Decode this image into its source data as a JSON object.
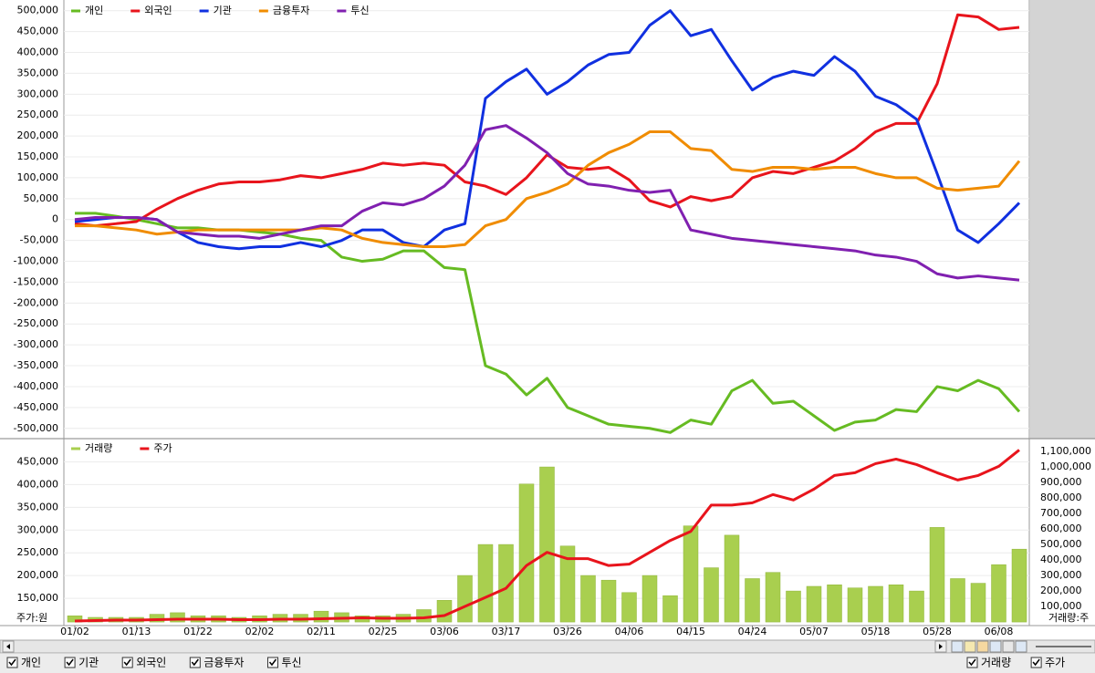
{
  "chart_data": [
    {
      "type": "line",
      "grid": true,
      "ylim": [
        -518000,
        519000
      ],
      "yticks": [
        {
          "value": 500000,
          "label": "500,000"
        },
        {
          "value": 450000,
          "label": "450,000"
        },
        {
          "value": 400000,
          "label": "400,000"
        },
        {
          "value": 350000,
          "label": "350,000"
        },
        {
          "value": 300000,
          "label": "300,000"
        },
        {
          "value": 250000,
          "label": "250,000"
        },
        {
          "value": 200000,
          "label": "200,000"
        },
        {
          "value": 150000,
          "label": "150,000"
        },
        {
          "value": 100000,
          "label": "100,000"
        },
        {
          "value": 50000,
          "label": "50,000"
        },
        0,
        {
          "value": -50000,
          "label": "-50,000"
        },
        {
          "value": -100000,
          "label": "-100,000"
        },
        {
          "value": -150000,
          "label": "-150,000"
        },
        {
          "value": -200000,
          "label": "-200,000"
        },
        {
          "value": -250000,
          "label": "-250,000"
        },
        {
          "value": -300000,
          "label": "-300,000"
        },
        {
          "value": -350000,
          "label": "-350,000"
        },
        {
          "value": -400000,
          "label": "-400,000"
        },
        {
          "value": -450000,
          "label": "-450,000"
        },
        {
          "value": -500000,
          "label": "-500,000"
        }
      ],
      "series": [
        {
          "name": "개인",
          "color": "#66bb22",
          "values": [
            15000,
            15000,
            8000,
            0,
            -10000,
            -20000,
            -20000,
            -25000,
            -25000,
            -30000,
            -35000,
            -45000,
            -50000,
            -90000,
            -100000,
            -95000,
            -75000,
            -75000,
            -115000,
            -120000,
            -350000,
            -370000,
            -420000,
            -380000,
            -450000,
            -470000,
            -490000,
            -495000,
            -500000,
            -510000,
            -480000,
            -490000,
            -410000,
            -385000,
            -440000,
            -435000,
            -470000,
            -505000,
            -485000,
            -480000,
            -455000,
            -460000,
            -400000,
            -410000,
            -385000,
            -405000,
            -460000
          ]
        },
        {
          "name": "외국인",
          "color": "#e8141c",
          "values": [
            -10000,
            -15000,
            -10000,
            -5000,
            25000,
            50000,
            70000,
            85000,
            90000,
            90000,
            95000,
            105000,
            100000,
            110000,
            120000,
            135000,
            130000,
            135000,
            130000,
            90000,
            80000,
            60000,
            100000,
            155000,
            125000,
            120000,
            125000,
            95000,
            45000,
            30000,
            55000,
            45000,
            55000,
            100000,
            115000,
            110000,
            125000,
            140000,
            170000,
            210000,
            230000,
            230000,
            325000,
            490000,
            485000,
            455000,
            460000
          ]
        },
        {
          "name": "기관",
          "color": "#1030e0",
          "values": [
            -5000,
            0,
            5000,
            5000,
            0,
            -30000,
            -55000,
            -65000,
            -70000,
            -65000,
            -65000,
            -55000,
            -65000,
            -50000,
            -25000,
            -25000,
            -55000,
            -65000,
            -25000,
            -10000,
            290000,
            330000,
            360000,
            300000,
            330000,
            370000,
            395000,
            400000,
            465000,
            500000,
            440000,
            455000,
            380000,
            310000,
            340000,
            355000,
            345000,
            390000,
            355000,
            295000,
            275000,
            240000,
            110000,
            -25000,
            -55000,
            -10000,
            40000
          ]
        },
        {
          "name": "금융투자",
          "color": "#f08c00",
          "values": [
            -15000,
            -15000,
            -20000,
            -25000,
            -35000,
            -30000,
            -25000,
            -25000,
            -25000,
            -25000,
            -25000,
            -25000,
            -20000,
            -25000,
            -45000,
            -55000,
            -60000,
            -65000,
            -65000,
            -60000,
            -15000,
            0,
            50000,
            65000,
            85000,
            130000,
            160000,
            180000,
            210000,
            210000,
            170000,
            165000,
            120000,
            115000,
            125000,
            125000,
            120000,
            125000,
            125000,
            110000,
            100000,
            100000,
            75000,
            70000,
            75000,
            80000,
            140000
          ]
        },
        {
          "name": "투신",
          "color": "#8020b0",
          "values": [
            0,
            5000,
            5000,
            5000,
            0,
            -30000,
            -35000,
            -40000,
            -40000,
            -45000,
            -35000,
            -25000,
            -15000,
            -15000,
            20000,
            40000,
            35000,
            50000,
            80000,
            130000,
            215000,
            225000,
            195000,
            160000,
            110000,
            85000,
            80000,
            70000,
            65000,
            70000,
            -25000,
            -35000,
            -45000,
            -50000,
            -55000,
            -60000,
            -65000,
            -70000,
            -75000,
            -85000,
            -90000,
            -100000,
            -130000,
            -140000,
            -135000,
            -140000,
            -145000
          ]
        }
      ]
    },
    {
      "type": "combo",
      "grid": true,
      "y_label": "주가:원",
      "y2_label": "거래량:주",
      "categories": [
        "01/02",
        null,
        null,
        "01/13",
        null,
        null,
        "01/22",
        null,
        null,
        "02/02",
        null,
        null,
        "02/11",
        null,
        null,
        "02/25",
        null,
        null,
        "03/06",
        null,
        null,
        "03/17",
        null,
        null,
        "03/26",
        null,
        null,
        "04/06",
        null,
        null,
        "04/15",
        null,
        null,
        "04/24",
        null,
        null,
        "05/07",
        null,
        null,
        "05/18",
        null,
        null,
        "05/28",
        null,
        null,
        "06/08",
        null
      ],
      "ylim": [
        90000,
        495000
      ],
      "yticks": [
        {
          "value": 450000,
          "label": "450,000"
        },
        {
          "value": 400000,
          "label": "400,000"
        },
        {
          "value": 350000,
          "label": "350,000"
        },
        {
          "value": 300000,
          "label": "300,000"
        },
        {
          "value": 250000,
          "label": "250,000"
        },
        {
          "value": 200000,
          "label": "200,000"
        },
        {
          "value": 150000,
          "label": "150,000"
        }
      ],
      "y2lim": [
        -23000,
        1165000
      ],
      "y2ticks": [
        {
          "value": 1100000,
          "label": "1,100,000"
        },
        {
          "value": 1000000,
          "label": "1,000,000"
        },
        {
          "value": 900000,
          "label": "900,000"
        },
        {
          "value": 800000,
          "label": "800,000"
        },
        {
          "value": 700000,
          "label": "700,000"
        },
        {
          "value": 600000,
          "label": "600,000"
        },
        {
          "value": 500000,
          "label": "500,000"
        },
        {
          "value": 400000,
          "label": "400,000"
        },
        {
          "value": 300000,
          "label": "300,000"
        },
        {
          "value": 200000,
          "label": "200,000"
        },
        {
          "value": 100000,
          "label": "100,000"
        }
      ],
      "series": [
        {
          "name": "거래량",
          "type": "bar",
          "axis": "y2",
          "color": "#a9cf4f",
          "values": [
            40000,
            30000,
            30000,
            30000,
            50000,
            60000,
            40000,
            40000,
            30000,
            40000,
            50000,
            50000,
            70000,
            60000,
            40000,
            40000,
            50000,
            80000,
            140000,
            300000,
            500000,
            500000,
            890000,
            1000000,
            490000,
            300000,
            270000,
            190000,
            300000,
            170000,
            620000,
            350000,
            560000,
            280000,
            320000,
            200000,
            230000,
            240000,
            220000,
            230000,
            240000,
            200000,
            610000,
            280000,
            250000,
            370000,
            470000
          ]
        },
        {
          "name": "주가",
          "type": "line",
          "color": "#e8141c",
          "values": [
            100000,
            101000,
            102000,
            102000,
            103000,
            104000,
            104000,
            104000,
            103000,
            103000,
            104000,
            104000,
            105000,
            106000,
            107000,
            106000,
            106000,
            107000,
            112000,
            132000,
            152000,
            172000,
            222000,
            251000,
            237000,
            237000,
            222000,
            225000,
            251000,
            277000,
            297000,
            355000,
            355000,
            360000,
            378000,
            366000,
            390000,
            420000,
            426000,
            446000,
            456000,
            444000,
            426000,
            410000,
            420000,
            440000,
            476000
          ]
        }
      ]
    }
  ],
  "controls": {
    "series_toggles": [
      "개인",
      "기관",
      "외국인",
      "금융투자",
      "투신"
    ],
    "panel_toggles": [
      "거래량",
      "주가"
    ]
  }
}
